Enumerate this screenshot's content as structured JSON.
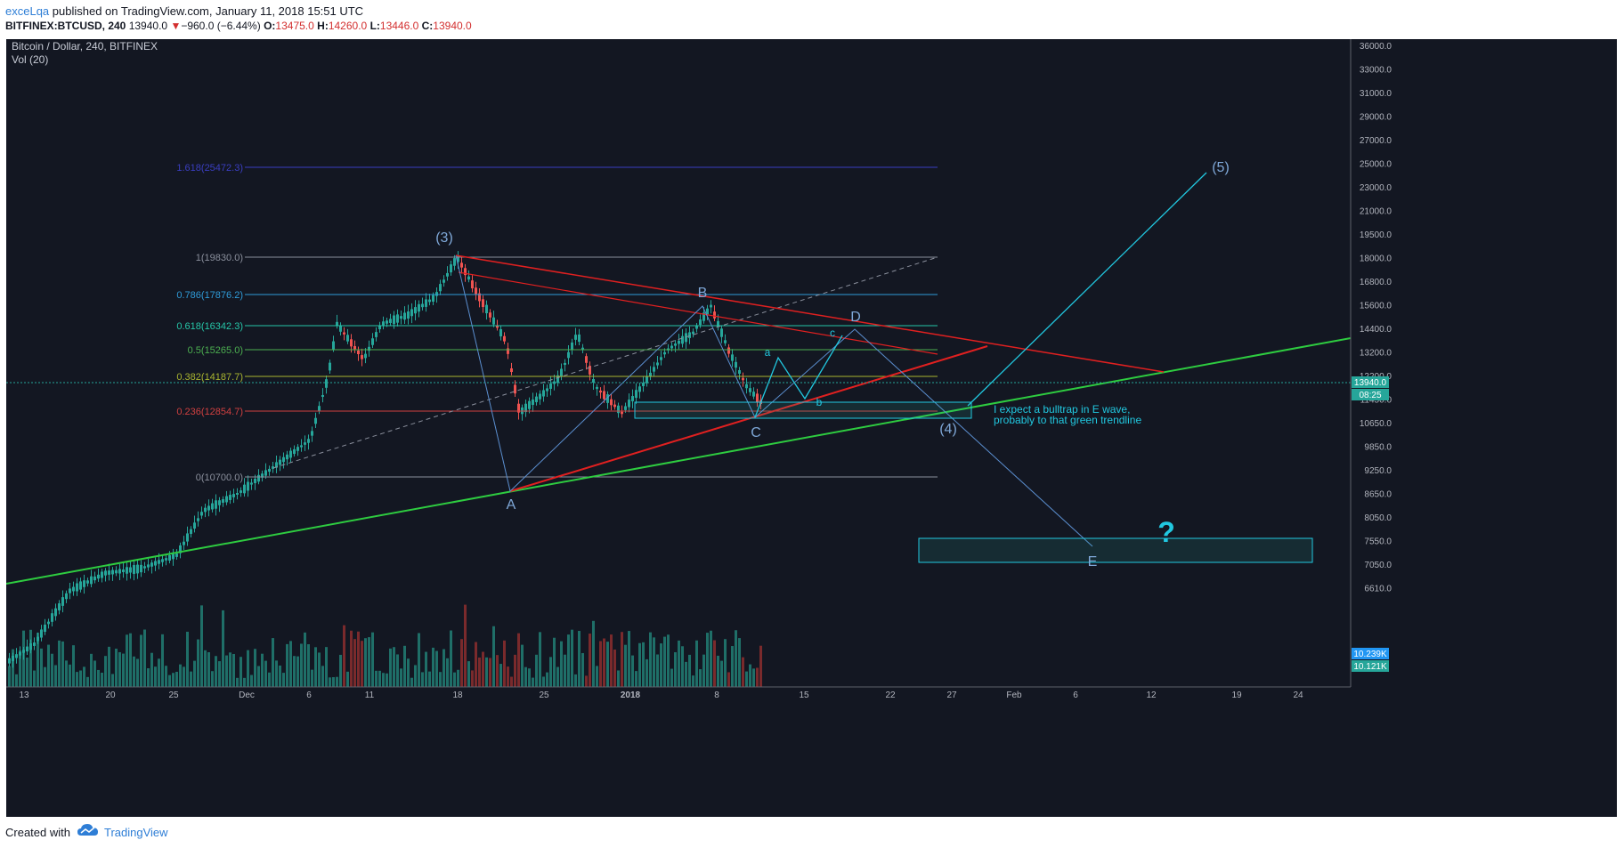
{
  "header": {
    "author": "exceLqa",
    "published_text": "published on TradingView.com, January 11, 2018 15:51 UTC",
    "symbol": "BITFINEX:BTCUSD, 240",
    "last": "13940.0",
    "change_arrow": "▼",
    "change": "−960.0 (−6.44%)",
    "o_label": "O:",
    "o": "13475.0",
    "h_label": "H:",
    "h": "14260.0",
    "l_label": "L:",
    "l": "13446.0",
    "c_label": "C:",
    "c": "13940.0"
  },
  "chart": {
    "title": "Bitcoin / Dollar, 240, BITFINEX",
    "indicator": "Vol (20)",
    "price_axis": [
      "36000.0",
      "33000.0",
      "31000.0",
      "29000.0",
      "27000.0",
      "25000.0",
      "23000.0",
      "21000.0",
      "19500.0",
      "18000.0",
      "16800.0",
      "15600.0",
      "14400.0",
      "13200.0",
      "12200.0",
      "11450.0",
      "10650.0",
      "9850.0",
      "9250.0",
      "8650.0",
      "8050.0",
      "7550.0",
      "7050.0",
      "6610.0"
    ],
    "time_axis": [
      "13",
      "20",
      "25",
      "Dec",
      "6",
      "11",
      "18",
      "25",
      "2018",
      "8",
      "15",
      "22",
      "27",
      "Feb",
      "6",
      "12",
      "19",
      "24"
    ],
    "last_price_tag": "13940.0",
    "countdown_tag": "08:25",
    "vol_tag_1": "10.239K",
    "vol_tag_2": "10.121K",
    "fib_levels": [
      {
        "label": "1.618(25472.3)",
        "color": "#3a3ec0"
      },
      {
        "label": "1(19830.0)",
        "color": "#8a8f9c"
      },
      {
        "label": "0.786(17876.2)",
        "color": "#2f9bd8"
      },
      {
        "label": "0.618(16342.3)",
        "color": "#26c6a8"
      },
      {
        "label": "0.5(15265.0)",
        "color": "#4caf50"
      },
      {
        "label": "0.382(14187.7)",
        "color": "#a9b530"
      },
      {
        "label": "0.236(12854.7)",
        "color": "#d04040"
      },
      {
        "label": "0(10700.0)",
        "color": "#8a8f9c"
      }
    ],
    "wave_labels": {
      "w3": "(3)",
      "w4": "(4)",
      "w5": "(5)",
      "A": "A",
      "B": "B",
      "C": "C",
      "D": "D",
      "E": "E",
      "a": "a",
      "b": "b",
      "c": "c",
      "question": "?"
    },
    "note_line1": "I expect a bulltrap in E wave,",
    "note_line2": "probably to that green trendline",
    "colors": {
      "background": "#131722",
      "up": "#26a69a",
      "down": "#ef5350",
      "green_trend": "#2ecc40",
      "red_trend": "#e02020",
      "cyan_drawing": "#21c8e0",
      "wave_label": "#7fa8d8"
    }
  },
  "footer": {
    "created_with": "Created with",
    "brand": "TradingView"
  }
}
